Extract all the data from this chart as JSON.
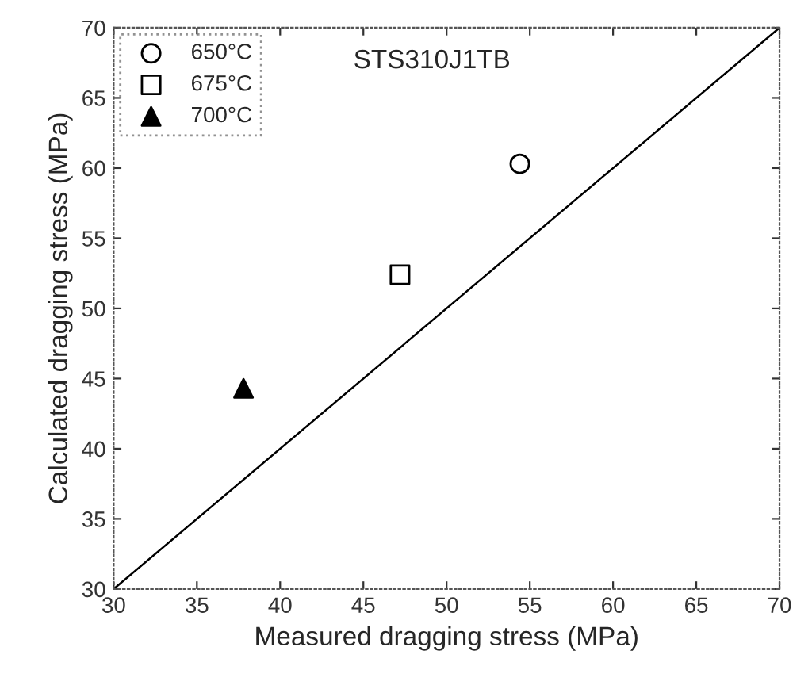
{
  "chart_data": {
    "type": "scatter",
    "xlabel": "Measured dragging stress (MPa)",
    "ylabel": "Calculated dragging stress (MPa)",
    "xlim": [
      30,
      70
    ],
    "ylim": [
      30,
      70
    ],
    "xticks": [
      30,
      35,
      40,
      45,
      50,
      55,
      60,
      65,
      70
    ],
    "yticks": [
      30,
      35,
      40,
      45,
      50,
      55,
      60,
      65,
      70
    ],
    "grid": false,
    "legend": "top left",
    "annotations": [
      "STS310J1TB"
    ],
    "series": [
      {
        "name": "650°C",
        "marker": "circle",
        "color": "#000000",
        "x": [
          54.4
        ],
        "values": [
          60.3
        ]
      },
      {
        "name": "675°C",
        "marker": "square",
        "color": "#000000",
        "x": [
          47.2
        ],
        "values": [
          52.4
        ]
      },
      {
        "name": "700°C",
        "marker": "triangle",
        "color": "#000000",
        "x": [
          37.8
        ],
        "values": [
          44.3
        ]
      },
      {
        "type": "line",
        "color": "#000000",
        "line_style": "solid",
        "x": [
          30,
          70
        ],
        "values": [
          30,
          70
        ]
      }
    ]
  }
}
